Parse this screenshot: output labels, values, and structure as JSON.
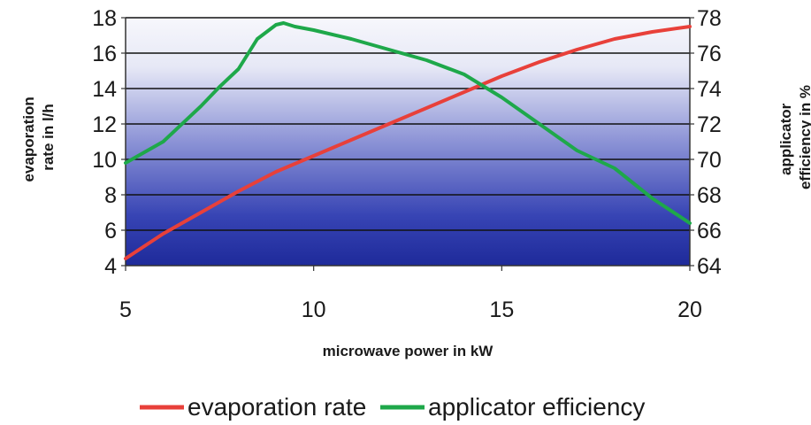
{
  "chart_data": {
    "type": "line",
    "xlabel": "microwave power in kW",
    "ylabel_left": [
      "evaporation",
      "rate in l/h"
    ],
    "ylabel_right": [
      "applicator",
      "efficiency in %"
    ],
    "x_ticks": [
      "5",
      "10",
      "15",
      "20"
    ],
    "y_left_ticks": [
      "4",
      "6",
      "8",
      "10",
      "12",
      "14",
      "16",
      "18"
    ],
    "y_right_ticks": [
      "64",
      "66",
      "68",
      "70",
      "72",
      "74",
      "76",
      "78"
    ],
    "xlim": [
      5,
      20
    ],
    "ylim_left": [
      4,
      18
    ],
    "ylim_right": [
      64,
      78
    ],
    "grid": true,
    "legend_position": "bottom",
    "series": [
      {
        "name": "evaporation rate",
        "axis": "left",
        "color": "#e8403a",
        "x": [
          5,
          6,
          7,
          8,
          9,
          10,
          11,
          12,
          13,
          14,
          15,
          16,
          17,
          18,
          19,
          20
        ],
        "y": [
          4.4,
          5.8,
          7.0,
          8.2,
          9.3,
          10.2,
          11.1,
          12.0,
          12.9,
          13.8,
          14.7,
          15.5,
          16.2,
          16.8,
          17.2,
          17.5
        ]
      },
      {
        "name": "applicator efficiency",
        "axis": "right",
        "color": "#1ea84a",
        "x": [
          5,
          6,
          7,
          7.5,
          8,
          8.5,
          9,
          9.2,
          9.5,
          10,
          11,
          12,
          13,
          14,
          15,
          16,
          17,
          18,
          19,
          20
        ],
        "y": [
          69.8,
          71.0,
          73.0,
          74.1,
          75.1,
          76.8,
          77.6,
          77.7,
          77.5,
          77.3,
          76.8,
          76.2,
          75.6,
          74.8,
          73.5,
          72.0,
          70.5,
          69.5,
          67.8,
          66.4
        ]
      }
    ]
  }
}
